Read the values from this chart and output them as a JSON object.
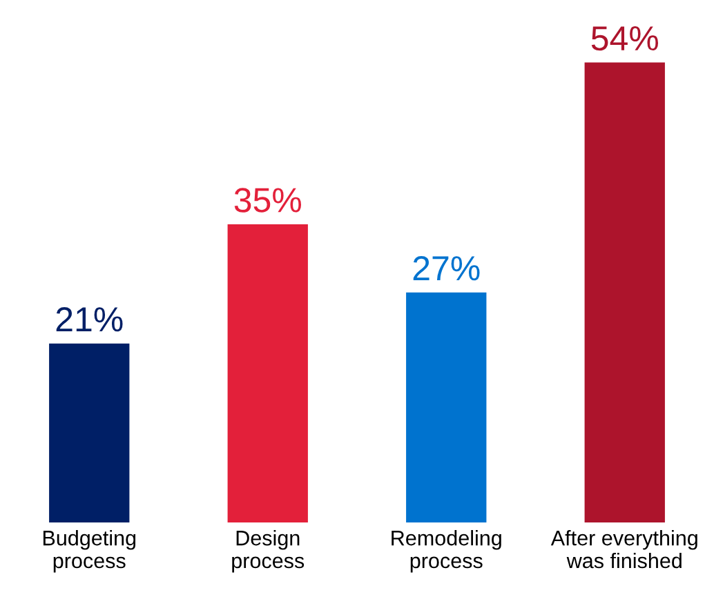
{
  "chart_data": {
    "type": "bar",
    "categories": [
      "Budgeting\nprocess",
      "Design\nprocess",
      "Remodeling\nprocess",
      "After everything\nwas finished"
    ],
    "values": [
      21,
      35,
      27,
      54
    ],
    "colors": [
      "#001f66",
      "#e3203a",
      "#0073cf",
      "#ad142c"
    ],
    "value_labels": [
      "21%",
      "35%",
      "27%",
      "54%"
    ],
    "tick_labels": "x",
    "grid": false,
    "legend": false
  }
}
